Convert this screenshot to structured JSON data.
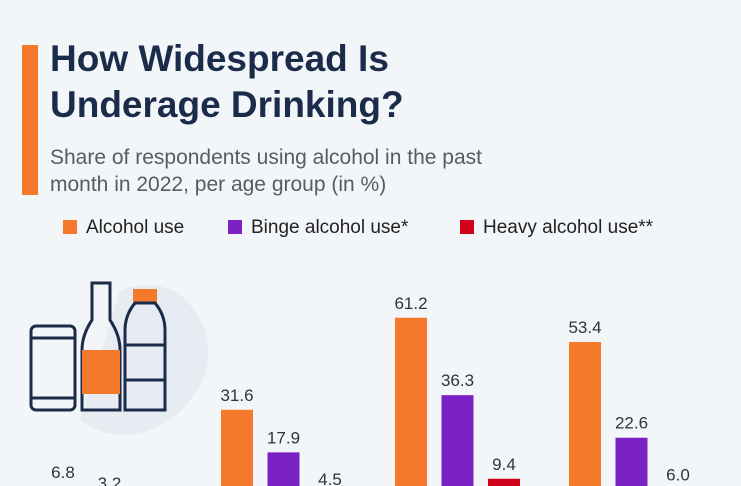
{
  "chart_data": {
    "type": "bar",
    "title": "How Widespread Is Underage Drinking?",
    "subtitle": "Share of respondents using alcohol in the past month in 2022, per age group (in %)",
    "categories": [
      null,
      null,
      null,
      null
    ],
    "series": [
      {
        "name": "Alcohol use",
        "color": "#f5792a",
        "values": [
          6.8,
          31.6,
          61.2,
          53.4
        ]
      },
      {
        "name": "Binge alcohol use*",
        "color": "#7b22c4",
        "values": [
          3.2,
          17.9,
          36.3,
          22.6
        ]
      },
      {
        "name": "Heavy alcohol use**",
        "color": "#d0021b",
        "values": [
          null,
          4.5,
          9.4,
          6
        ],
        "value_labels": [
          null,
          "4.5",
          "9.4",
          "6.0"
        ]
      }
    ],
    "ylim": [
      0,
      70
    ]
  }
}
